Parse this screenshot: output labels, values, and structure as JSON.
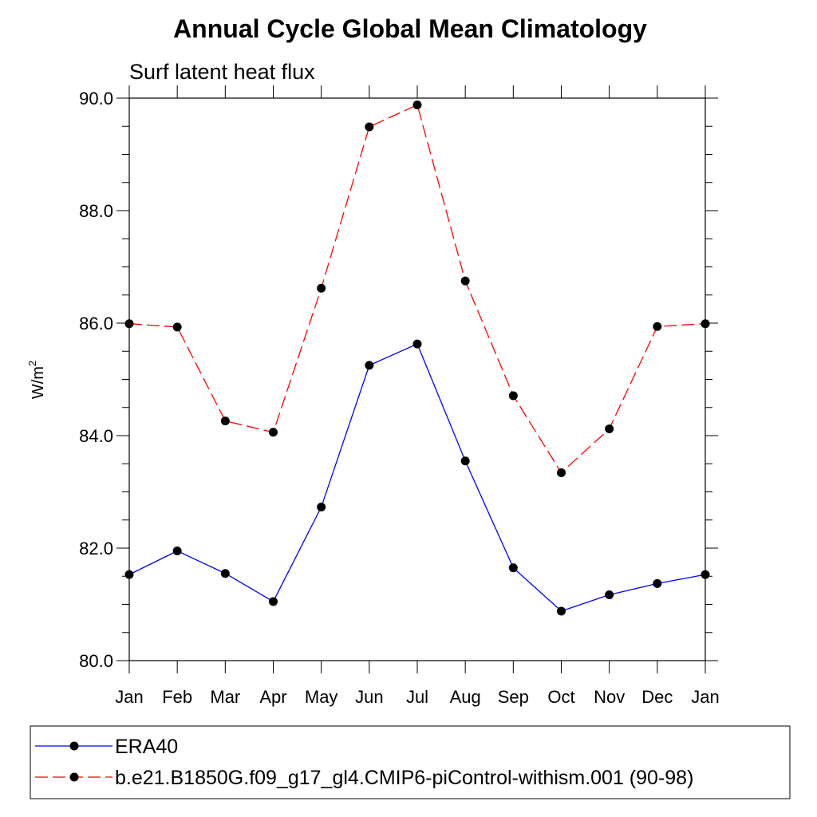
{
  "chart_data": {
    "type": "line",
    "title": "Annual Cycle Global Mean Climatology",
    "subtitle": "Surf latent heat flux",
    "xlabel": "",
    "ylabel": "W/m",
    "ylabel_sup": "2",
    "categories": [
      "Jan",
      "Feb",
      "Mar",
      "Apr",
      "May",
      "Jun",
      "Jul",
      "Aug",
      "Sep",
      "Oct",
      "Nov",
      "Dec",
      "Jan"
    ],
    "ylim": [
      80.0,
      90.0
    ],
    "yticks": [
      80.0,
      82.0,
      84.0,
      86.0,
      88.0,
      90.0
    ],
    "ytick_labels": [
      "80.0",
      "82.0",
      "84.0",
      "86.0",
      "88.0",
      "90.0"
    ],
    "grid": false,
    "legend_position": "bottom",
    "series": [
      {
        "name": "ERA40",
        "color": "#0000ff",
        "line_style": "solid",
        "marker": "filled-circle",
        "values": [
          81.53,
          81.95,
          81.55,
          81.05,
          82.73,
          85.25,
          85.63,
          83.55,
          81.65,
          80.88,
          81.17,
          81.37,
          81.53
        ]
      },
      {
        "name": "b.e21.B1850G.f09_g17_gl4.CMIP6-piControl-withism.001 (90-98)",
        "color": "#ff0000",
        "line_style": "dashed",
        "marker": "filled-circle",
        "values": [
          85.99,
          85.93,
          84.26,
          84.06,
          86.62,
          89.49,
          89.88,
          86.75,
          84.71,
          83.34,
          84.12,
          85.94,
          85.99
        ]
      }
    ]
  }
}
